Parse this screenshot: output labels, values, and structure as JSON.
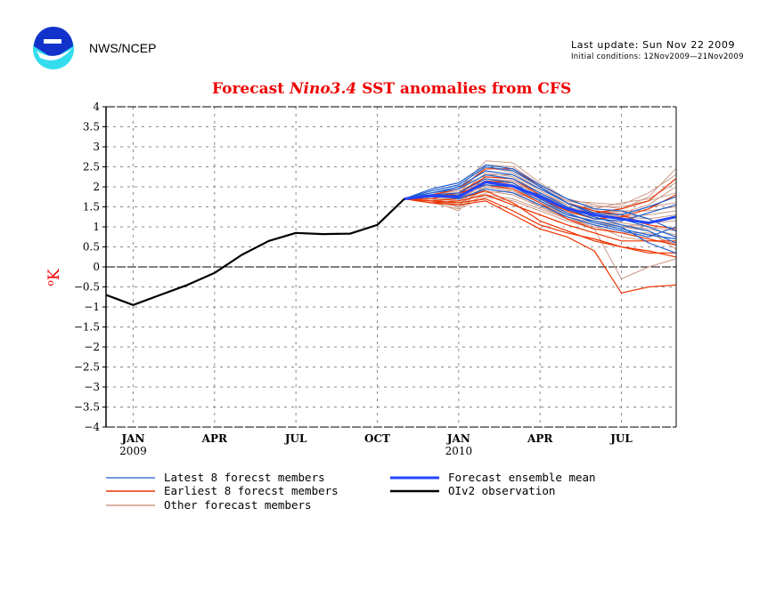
{
  "header": {
    "org": "NWS/NCEP",
    "logo": "noaa-logo",
    "last_update": "Last update: Sun Nov 22 2009",
    "initial_conditions": "Initial conditions: 12Nov2009—21Nov2009"
  },
  "chart_data": {
    "type": "line",
    "title_prefix": "Forecast",
    "title_italic": "Nino3.4",
    "title_suffix": "SST anomalies from CFS",
    "ylabel": "oK",
    "ylim": [
      -4,
      4
    ],
    "yticks": [
      "4",
      "3.5",
      "3",
      "2.5",
      "2",
      "1.5",
      "1",
      "0.5",
      "0",
      "-0.5",
      "-1",
      "-1.5",
      "-2",
      "-2.5",
      "-3",
      "-3.5",
      "-4"
    ],
    "xticks": [
      {
        "label": "JAN",
        "year": "2009",
        "month_index": 1
      },
      {
        "label": "APR",
        "year": "",
        "month_index": 4
      },
      {
        "label": "JUL",
        "year": "",
        "month_index": 7
      },
      {
        "label": "OCT",
        "year": "",
        "month_index": 10
      },
      {
        "label": "JAN",
        "year": "2010",
        "month_index": 13
      },
      {
        "label": "APR",
        "year": "",
        "month_index": 16
      },
      {
        "label": "JUL",
        "year": "",
        "month_index": 19
      }
    ],
    "x_range_months": [
      0,
      21
    ],
    "grid": true,
    "zero_line": true,
    "observation": {
      "name": "OIv2 observation",
      "color": "#000000",
      "month_index": [
        0,
        1,
        2,
        3,
        4,
        5,
        6,
        7,
        8,
        9,
        10,
        11
      ],
      "values": [
        -0.7,
        -0.95,
        -0.7,
        -0.45,
        -0.15,
        0.3,
        0.65,
        0.85,
        0.82,
        0.83,
        1.05,
        1.7
      ]
    },
    "forecast_month_index": [
      11,
      12,
      13,
      14,
      15,
      16,
      17,
      18,
      19,
      20,
      21
    ],
    "ensemble_mean": {
      "name": "Forecast ensemble mean",
      "color": "#2244ff",
      "values": [
        1.7,
        1.78,
        1.75,
        2.12,
        2.02,
        1.75,
        1.45,
        1.3,
        1.2,
        1.1,
        1.25
      ]
    },
    "latest_members": {
      "name": "Latest 8 forecast members",
      "color": "#1f5fcc",
      "series": [
        [
          1.7,
          1.95,
          2.1,
          2.55,
          2.45,
          2.05,
          1.7,
          1.45,
          1.4,
          1.2,
          0.9
        ],
        [
          1.7,
          1.9,
          2.05,
          2.5,
          2.4,
          2.0,
          1.6,
          1.3,
          1.2,
          1.0,
          0.75
        ],
        [
          1.7,
          1.85,
          1.95,
          2.3,
          2.2,
          1.85,
          1.5,
          1.25,
          1.05,
          0.9,
          0.6
        ],
        [
          1.7,
          1.8,
          1.85,
          2.2,
          2.1,
          1.7,
          1.35,
          1.1,
          0.95,
          0.8,
          0.7
        ],
        [
          1.7,
          1.75,
          1.8,
          2.05,
          2.0,
          1.65,
          1.3,
          1.15,
          1.0,
          0.6,
          0.35
        ],
        [
          1.7,
          1.8,
          1.7,
          1.95,
          1.85,
          1.55,
          1.25,
          1.05,
          0.9,
          0.75,
          1.0
        ],
        [
          1.7,
          1.85,
          2.0,
          2.4,
          2.3,
          1.95,
          1.6,
          1.35,
          1.3,
          1.5,
          1.75
        ],
        [
          1.7,
          1.75,
          1.75,
          2.1,
          2.0,
          1.8,
          1.45,
          1.2,
          1.15,
          1.35,
          1.55
        ]
      ]
    },
    "earliest_members": {
      "name": "Earliest 8 forecast members",
      "color": "#ee3300",
      "series": [
        [
          1.7,
          1.6,
          1.55,
          1.65,
          1.3,
          0.95,
          0.75,
          0.4,
          -0.65,
          -0.5,
          -0.45
        ],
        [
          1.7,
          1.65,
          1.7,
          1.9,
          1.6,
          1.15,
          0.9,
          0.65,
          0.5,
          0.4,
          0.25
        ],
        [
          1.7,
          1.7,
          1.85,
          2.05,
          1.95,
          1.6,
          1.2,
          0.95,
          0.85,
          0.7,
          0.55
        ],
        [
          1.7,
          1.75,
          1.8,
          2.15,
          2.1,
          1.7,
          1.4,
          1.2,
          1.25,
          1.45,
          1.8
        ],
        [
          1.7,
          1.75,
          1.85,
          2.25,
          2.2,
          1.8,
          1.45,
          1.35,
          1.45,
          1.65,
          2.2
        ],
        [
          1.7,
          1.6,
          1.65,
          1.8,
          1.55,
          1.3,
          1.05,
          0.85,
          0.65,
          0.65,
          0.65
        ],
        [
          1.7,
          1.65,
          1.6,
          1.7,
          1.4,
          1.05,
          0.85,
          0.7,
          0.5,
          0.35,
          0.35
        ],
        [
          1.7,
          1.8,
          1.95,
          2.45,
          2.45,
          2.0,
          1.6,
          1.4,
          1.3,
          1.05,
          0.95
        ]
      ]
    },
    "other_members": {
      "name": "Other forecast members",
      "color": "#cc9988",
      "series": [
        [
          1.7,
          1.8,
          1.95,
          2.65,
          2.6,
          2.1,
          1.7,
          1.55,
          1.45,
          1.75,
          2.45
        ],
        [
          1.7,
          1.75,
          1.85,
          2.55,
          2.5,
          2.05,
          1.65,
          1.6,
          1.55,
          1.85,
          2.3
        ],
        [
          1.7,
          1.7,
          1.5,
          2.3,
          2.3,
          1.9,
          1.55,
          1.45,
          1.6,
          1.7,
          2.1
        ],
        [
          1.7,
          1.65,
          1.4,
          2.1,
          2.15,
          1.75,
          1.4,
          1.2,
          1.3,
          1.5,
          1.6
        ],
        [
          1.7,
          1.7,
          1.55,
          2.0,
          1.95,
          1.65,
          1.35,
          1.25,
          1.1,
          1.0,
          0.9
        ],
        [
          1.7,
          1.75,
          1.75,
          1.9,
          1.8,
          1.5,
          1.2,
          1.0,
          0.85,
          0.85,
          0.55
        ],
        [
          1.7,
          1.6,
          1.45,
          1.75,
          1.65,
          1.4,
          1.15,
          0.95,
          -0.3,
          0.0,
          0.2
        ],
        [
          1.7,
          1.65,
          1.6,
          1.85,
          1.9,
          1.5,
          1.25,
          1.1,
          1.0,
          1.1,
          1.15
        ],
        [
          1.7,
          1.8,
          1.9,
          2.2,
          2.15,
          1.8,
          1.5,
          1.35,
          1.25,
          1.3,
          1.4
        ],
        [
          1.7,
          1.7,
          1.65,
          2.0,
          1.9,
          1.6,
          1.3,
          1.15,
          1.05,
          0.95,
          0.8
        ],
        [
          1.7,
          1.75,
          1.8,
          2.35,
          2.25,
          1.85,
          1.55,
          1.4,
          1.35,
          1.55,
          2.0
        ],
        [
          1.7,
          1.65,
          1.5,
          1.8,
          1.7,
          1.45,
          1.2,
          1.05,
          0.75,
          0.65,
          0.6
        ],
        [
          1.7,
          1.7,
          1.7,
          2.05,
          2.0,
          1.7,
          1.4,
          1.3,
          1.25,
          1.2,
          1.3
        ],
        [
          1.7,
          1.8,
          1.85,
          2.5,
          2.35,
          1.95,
          1.65,
          1.5,
          1.5,
          1.65,
          1.85
        ],
        [
          1.7,
          1.65,
          1.55,
          1.95,
          1.85,
          1.55,
          1.3,
          1.15,
          1.0,
          0.9,
          0.45
        ],
        [
          1.7,
          1.75,
          1.7,
          2.15,
          2.05,
          1.75,
          1.45,
          1.35,
          1.4,
          1.4,
          1.5
        ]
      ]
    },
    "legend": {
      "placement": "bottom",
      "entries": [
        {
          "label": "Latest 8 forecst members",
          "key": "latest_members"
        },
        {
          "label": "Earliest 8 forecst members",
          "key": "earliest_members"
        },
        {
          "label": "Other forecast members",
          "key": "other_members"
        },
        {
          "label": "Forecast ensemble mean",
          "key": "ensemble_mean"
        },
        {
          "label": "OIv2 observation",
          "key": "observation"
        }
      ]
    }
  }
}
